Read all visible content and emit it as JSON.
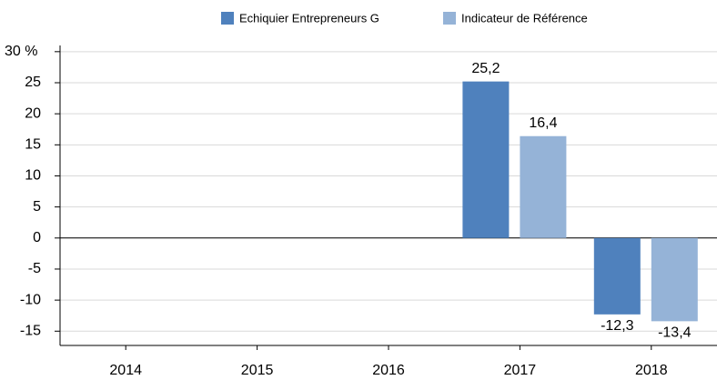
{
  "chart_data": {
    "type": "bar",
    "categories": [
      "2014",
      "2015",
      "2016",
      "2017",
      "2018"
    ],
    "series": [
      {
        "name": "Echiquier Entrepreneurs G",
        "color": "#4f81bd",
        "values": [
          null,
          null,
          null,
          25.2,
          -12.3
        ],
        "value_labels": [
          null,
          null,
          null,
          "25,2",
          "-12,3"
        ]
      },
      {
        "name": "Indicateur de Référence",
        "color": "#95b3d7",
        "values": [
          null,
          null,
          null,
          16.4,
          -13.4
        ],
        "value_labels": [
          null,
          null,
          null,
          "16,4",
          "-13,4"
        ]
      }
    ],
    "ylim": [
      -17.3,
      31
    ],
    "yticks": [
      -15,
      -10,
      -5,
      0,
      5,
      10,
      15,
      20,
      25,
      {
        "value": 30,
        "label": "30 %"
      }
    ],
    "grid": true,
    "legend": "top"
  }
}
